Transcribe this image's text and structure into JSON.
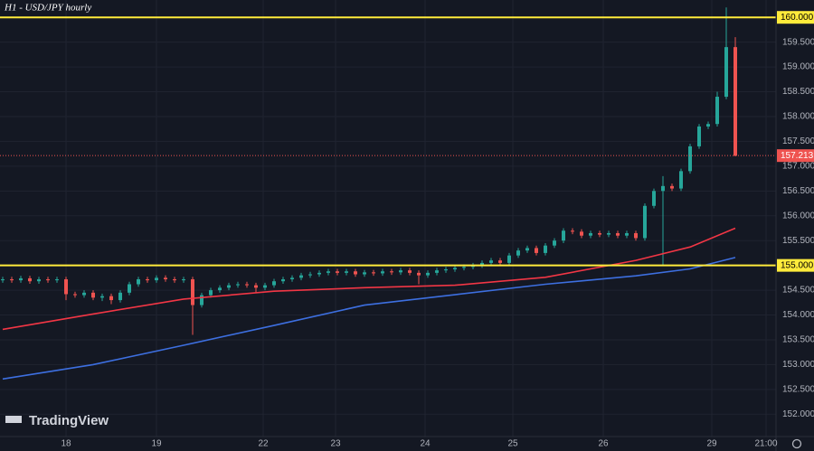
{
  "chart_data": {
    "type": "candlestick",
    "title": "H1 - USD/JPY hourly",
    "brand": "TradingView",
    "up_color": "#26a69a",
    "down_color": "#ef5350",
    "grid": true,
    "ylim": [
      151.55,
      160.35
    ],
    "xlim": [
      -0.3,
      85.5
    ],
    "yticks": [
      {
        "value": 152,
        "label": "152.000"
      },
      {
        "value": 152.5,
        "label": "152.500"
      },
      {
        "value": 153,
        "label": "153.000"
      },
      {
        "value": 153.5,
        "label": "153.500"
      },
      {
        "value": 154,
        "label": "154.000"
      },
      {
        "value": 154.5,
        "label": "154.500"
      },
      {
        "value": 155,
        "label": "155.000"
      },
      {
        "value": 155.5,
        "label": "155.500"
      },
      {
        "value": 156,
        "label": "156.000"
      },
      {
        "value": 156.5,
        "label": "156.500"
      },
      {
        "value": 157,
        "label": "157.000"
      },
      {
        "value": 157.5,
        "label": "157.500"
      },
      {
        "value": 158,
        "label": "158.000"
      },
      {
        "value": 158.5,
        "label": "158.500"
      },
      {
        "value": 159,
        "label": "159.000"
      },
      {
        "value": 159.5,
        "label": "159.500"
      },
      {
        "value": 160,
        "label": "160.000"
      }
    ],
    "xticks": [
      {
        "value": 7,
        "label": "18"
      },
      {
        "value": 17,
        "label": "19"
      },
      {
        "value": 28.8,
        "label": "22"
      },
      {
        "value": 36.8,
        "label": "23"
      },
      {
        "value": 46.7,
        "label": "24"
      },
      {
        "value": 56.4,
        "label": "25"
      },
      {
        "value": 66.4,
        "label": "26"
      },
      {
        "value": 78.4,
        "label": "29"
      },
      {
        "value": 84.4,
        "label": "21:00"
      }
    ],
    "open": [
      154.7,
      154.72,
      154.7,
      154.74,
      154.68,
      154.72,
      154.7,
      154.72,
      154.42,
      154.4,
      154.45,
      154.35,
      154.38,
      154.3,
      154.45,
      154.62,
      154.72,
      154.7,
      154.75,
      154.72,
      154.7,
      154.72,
      154.2,
      154.4,
      154.5,
      154.55,
      154.6,
      154.62,
      154.6,
      154.55,
      154.6,
      154.68,
      154.72,
      154.75,
      154.8,
      154.82,
      154.85,
      154.88,
      154.85,
      154.88,
      154.82,
      154.86,
      154.84,
      154.88,
      154.86,
      154.9,
      154.85,
      154.8,
      154.85,
      154.9,
      154.92,
      154.95,
      154.97,
      155.0,
      155.05,
      155.1,
      155.05,
      155.2,
      155.3,
      155.35,
      155.25,
      155.4,
      155.5,
      155.7,
      155.68,
      155.6,
      155.65,
      155.62,
      155.65,
      155.6,
      155.65,
      155.55,
      156.2,
      156.5,
      156.6,
      156.55,
      156.9,
      157.4,
      157.8,
      157.85,
      158.4,
      159.4
    ],
    "high": [
      154.77,
      154.77,
      154.79,
      154.79,
      154.77,
      154.77,
      154.77,
      154.77,
      154.47,
      154.5,
      154.5,
      154.43,
      154.43,
      154.5,
      154.67,
      154.77,
      154.77,
      154.8,
      154.8,
      154.77,
      154.77,
      154.77,
      154.45,
      154.55,
      154.6,
      154.65,
      154.67,
      154.67,
      154.65,
      154.65,
      154.73,
      154.77,
      154.8,
      154.85,
      154.87,
      154.9,
      154.93,
      154.93,
      154.93,
      154.93,
      154.91,
      154.91,
      154.93,
      154.93,
      154.95,
      154.95,
      154.9,
      154.9,
      154.95,
      154.97,
      155.0,
      155.02,
      155.05,
      155.1,
      155.15,
      155.15,
      155.25,
      155.35,
      155.4,
      155.4,
      155.45,
      155.55,
      155.75,
      155.75,
      155.73,
      155.7,
      155.7,
      155.7,
      155.7,
      155.7,
      155.7,
      156.25,
      156.55,
      156.8,
      156.65,
      156.95,
      157.45,
      157.85,
      157.9,
      158.5,
      160.2,
      159.6
    ],
    "low": [
      154.65,
      154.65,
      154.65,
      154.63,
      154.63,
      154.65,
      154.65,
      154.3,
      154.35,
      154.35,
      154.3,
      154.28,
      154.22,
      154.25,
      154.4,
      154.57,
      154.65,
      154.65,
      154.67,
      154.65,
      154.65,
      153.6,
      154.15,
      154.35,
      154.45,
      154.5,
      154.55,
      154.55,
      154.45,
      154.5,
      154.55,
      154.63,
      154.67,
      154.7,
      154.75,
      154.77,
      154.8,
      154.8,
      154.8,
      154.77,
      154.77,
      154.79,
      154.79,
      154.81,
      154.81,
      154.8,
      154.62,
      154.75,
      154.8,
      154.85,
      154.87,
      154.9,
      154.92,
      154.95,
      155.0,
      155.0,
      155.0,
      155.15,
      155.25,
      155.2,
      155.2,
      155.35,
      155.45,
      155.63,
      155.55,
      155.55,
      155.57,
      155.57,
      155.55,
      155.55,
      155.5,
      155.5,
      156.15,
      155.0,
      156.5,
      156.5,
      156.85,
      157.35,
      157.75,
      157.8,
      158.35,
      157.2
    ],
    "close": [
      154.72,
      154.7,
      154.74,
      154.68,
      154.72,
      154.7,
      154.72,
      154.42,
      154.4,
      154.45,
      154.35,
      154.38,
      154.3,
      154.45,
      154.62,
      154.72,
      154.7,
      154.75,
      154.72,
      154.7,
      154.72,
      154.2,
      154.4,
      154.5,
      154.55,
      154.6,
      154.62,
      154.6,
      154.55,
      154.6,
      154.68,
      154.72,
      154.75,
      154.8,
      154.82,
      154.85,
      154.88,
      154.85,
      154.88,
      154.82,
      154.86,
      154.84,
      154.88,
      154.86,
      154.9,
      154.85,
      154.8,
      154.85,
      154.9,
      154.92,
      154.95,
      154.97,
      155.0,
      155.05,
      155.1,
      155.05,
      155.2,
      155.3,
      155.35,
      155.25,
      155.4,
      155.5,
      155.7,
      155.68,
      155.6,
      155.65,
      155.62,
      155.65,
      155.6,
      155.65,
      155.55,
      156.2,
      156.5,
      156.6,
      156.55,
      156.9,
      157.4,
      157.8,
      157.85,
      158.4,
      159.4,
      157.21
    ],
    "series": [
      {
        "color": "#f23645",
        "x": [
          0,
          10,
          20,
          30,
          40,
          50,
          60,
          70,
          76,
          81
        ],
        "values": [
          153.71,
          154.02,
          154.32,
          154.48,
          154.55,
          154.6,
          154.76,
          155.1,
          155.37,
          155.75
        ]
      },
      {
        "color": "#3d6fe0",
        "x": [
          0,
          10,
          20,
          30,
          40,
          50,
          60,
          70,
          76,
          81
        ],
        "values": [
          152.71,
          153.0,
          153.39,
          153.79,
          154.2,
          154.41,
          154.62,
          154.79,
          154.93,
          155.16
        ]
      }
    ],
    "hlines": [
      {
        "value": 160,
        "label": "160.000"
      },
      {
        "value": 155,
        "label": "155.000"
      }
    ],
    "hline_color": "#ffeb3b",
    "price_line": {
      "value": 157.213,
      "label": "157.213"
    }
  }
}
